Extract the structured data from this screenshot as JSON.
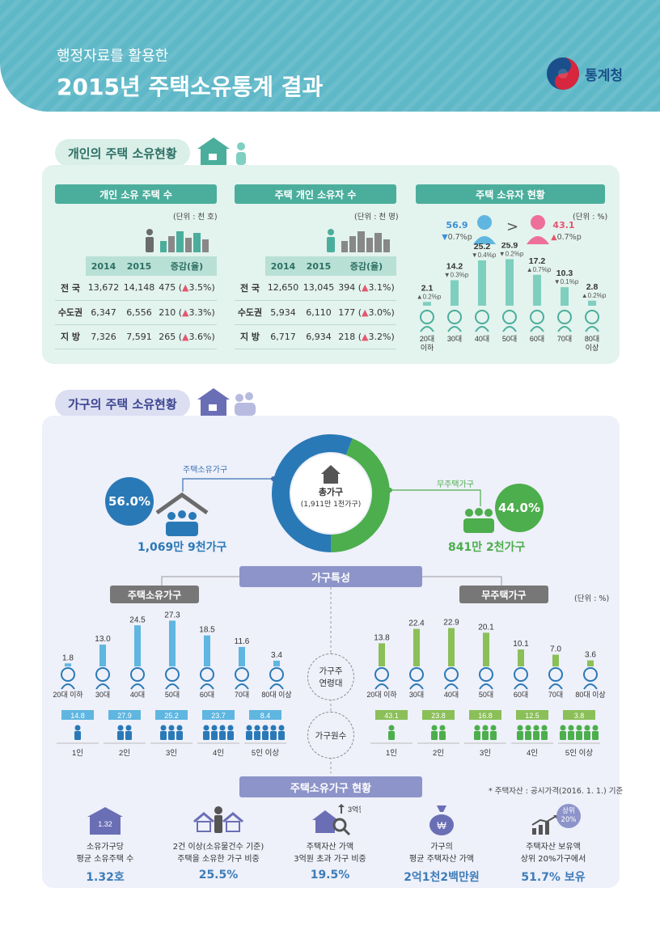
{
  "header": {
    "subtitle": "행정자료를 활용한",
    "title": "2015년 주택소유통계 결과",
    "org_name": "통계청"
  },
  "colors": {
    "header": "#5fb8c8",
    "teal": "#4bae9c",
    "blue_bar": "#5fb6e0",
    "green_bar": "#8bbf58",
    "navy": "#3465a4",
    "purple_tag": "#8d94c9",
    "red_up": "#e5566f",
    "blue_down": "#3a8fd6"
  },
  "individual": {
    "section_title": "개인의 주택 소유현황",
    "houses": {
      "title": "개인 소유 주택 수",
      "unit": "(단위 : 천 호)",
      "headers": [
        "2014",
        "2015",
        "증감(율)"
      ],
      "rows": [
        {
          "region": "전    국",
          "y2014": "13,672",
          "y2015": "14,148",
          "diff": "475",
          "rate": "3.5%"
        },
        {
          "region": "수도권",
          "y2014": "6,347",
          "y2015": "6,556",
          "diff": "210",
          "rate": "3.3%"
        },
        {
          "region": "지    방",
          "y2014": "7,326",
          "y2015": "7,591",
          "diff": "265",
          "rate": "3.6%"
        }
      ]
    },
    "owners": {
      "title": "주택 개인 소유자 수",
      "unit": "(단위 : 천 명)",
      "headers": [
        "2014",
        "2015",
        "증감(율)"
      ],
      "rows": [
        {
          "region": "전    국",
          "y2014": "12,650",
          "y2015": "13,045",
          "diff": "394",
          "rate": "3.1%"
        },
        {
          "region": "수도권",
          "y2014": "5,934",
          "y2015": "6,110",
          "diff": "177",
          "rate": "3.0%"
        },
        {
          "region": "지    방",
          "y2014": "6,717",
          "y2015": "6,934",
          "diff": "218",
          "rate": "3.2%"
        }
      ]
    },
    "status": {
      "title": "주택 소유자 현황",
      "unit": "(단위 : %)",
      "male": {
        "value": "56.9",
        "change": "0.7%p",
        "dir": "down"
      },
      "female": {
        "value": "43.1",
        "change": "0.7%p",
        "dir": "up"
      },
      "compare": ">"
    }
  },
  "household": {
    "section_title": "가구의 주택 소유현황",
    "owner_label": "주택소유가구",
    "owner_pct": "56.0%",
    "owner_count": "1,069만 9천가구",
    "nonowner_label": "무주택가구",
    "nonowner_pct": "44.0%",
    "nonowner_count": "841만 2천가구",
    "total_label": "총가구",
    "total_sub": "(1,911만 1천가구)",
    "characteristics": "가구특성",
    "owner_group": "주택소유가구",
    "nonowner_group": "무주택가구",
    "unit": "(단위 : %)",
    "age_center": "가구주\n연령대",
    "size_center": "가구원수",
    "status_title": "주택소유가구 현황",
    "footnote": "* 주택자산 : 공시가격(2016. 1. 1.) 기준",
    "house_icon_value": "1.32",
    "arrow_label": "3억원",
    "top_badge": "상위\n20%",
    "stats": [
      {
        "label": "소유가구당\n평균 소유주택 수",
        "value": "1.32호"
      },
      {
        "label": "2건 이상(소유물건수 기준)\n주택을 소유한 가구 비중",
        "value": "25.5%"
      },
      {
        "label": "주택자산 가액\n3억원 초과 가구 비중",
        "value": "19.5%"
      },
      {
        "label": "가구의\n평균 주택자산 가액",
        "value": "2억1천2백만원"
      },
      {
        "label": "주택자산 보유액\n상위 20%가구에서",
        "value": "51.7% 보유"
      }
    ]
  },
  "chart_data": [
    {
      "type": "bar",
      "title": "주택 소유자 현황",
      "unit": "%",
      "categories": [
        "20대\n이하",
        "30대",
        "40대",
        "50대",
        "60대",
        "70대",
        "80대\n이상"
      ],
      "values": [
        2.1,
        14.2,
        25.2,
        25.9,
        17.2,
        10.3,
        2.8
      ],
      "changes": [
        {
          "v": "0.2%p",
          "dir": "up"
        },
        {
          "v": "0.3%p",
          "dir": "down"
        },
        {
          "v": "0.4%p",
          "dir": "down"
        },
        {
          "v": "0.2%p",
          "dir": "down"
        },
        {
          "v": "0.7%p",
          "dir": "up"
        },
        {
          "v": "0.1%p",
          "dir": "down"
        },
        {
          "v": "0.2%p",
          "dir": "up"
        }
      ]
    },
    {
      "type": "bar",
      "title": "주택소유가구",
      "unit": "%",
      "categories": [
        "20대 이하",
        "30대",
        "40대",
        "50대",
        "60대",
        "70대",
        "80대 이상"
      ],
      "values": [
        1.8,
        13.0,
        24.5,
        27.3,
        18.5,
        11.6,
        3.4
      ]
    },
    {
      "type": "bar",
      "title": "무주택가구",
      "unit": "%",
      "categories": [
        "20대 이하",
        "30대",
        "40대",
        "50대",
        "60대",
        "70대",
        "80대 이상"
      ],
      "values": [
        13.8,
        22.4,
        22.9,
        20.1,
        10.1,
        7.0,
        3.6
      ]
    },
    {
      "type": "bar",
      "title": "주택소유가구 가구원수",
      "categories": [
        "1인",
        "2인",
        "3인",
        "4인",
        "5인 이상"
      ],
      "values": [
        14.8,
        27.9,
        25.2,
        23.7,
        8.4
      ]
    },
    {
      "type": "bar",
      "title": "무주택가구 가구원수",
      "categories": [
        "1인",
        "2인",
        "3인",
        "4인",
        "5인 이상"
      ],
      "values": [
        43.1,
        23.8,
        16.8,
        12.5,
        3.8
      ]
    },
    {
      "type": "pie",
      "title": "총가구",
      "categories": [
        "주택소유가구",
        "무주택가구"
      ],
      "values": [
        56.0,
        44.0
      ]
    }
  ]
}
